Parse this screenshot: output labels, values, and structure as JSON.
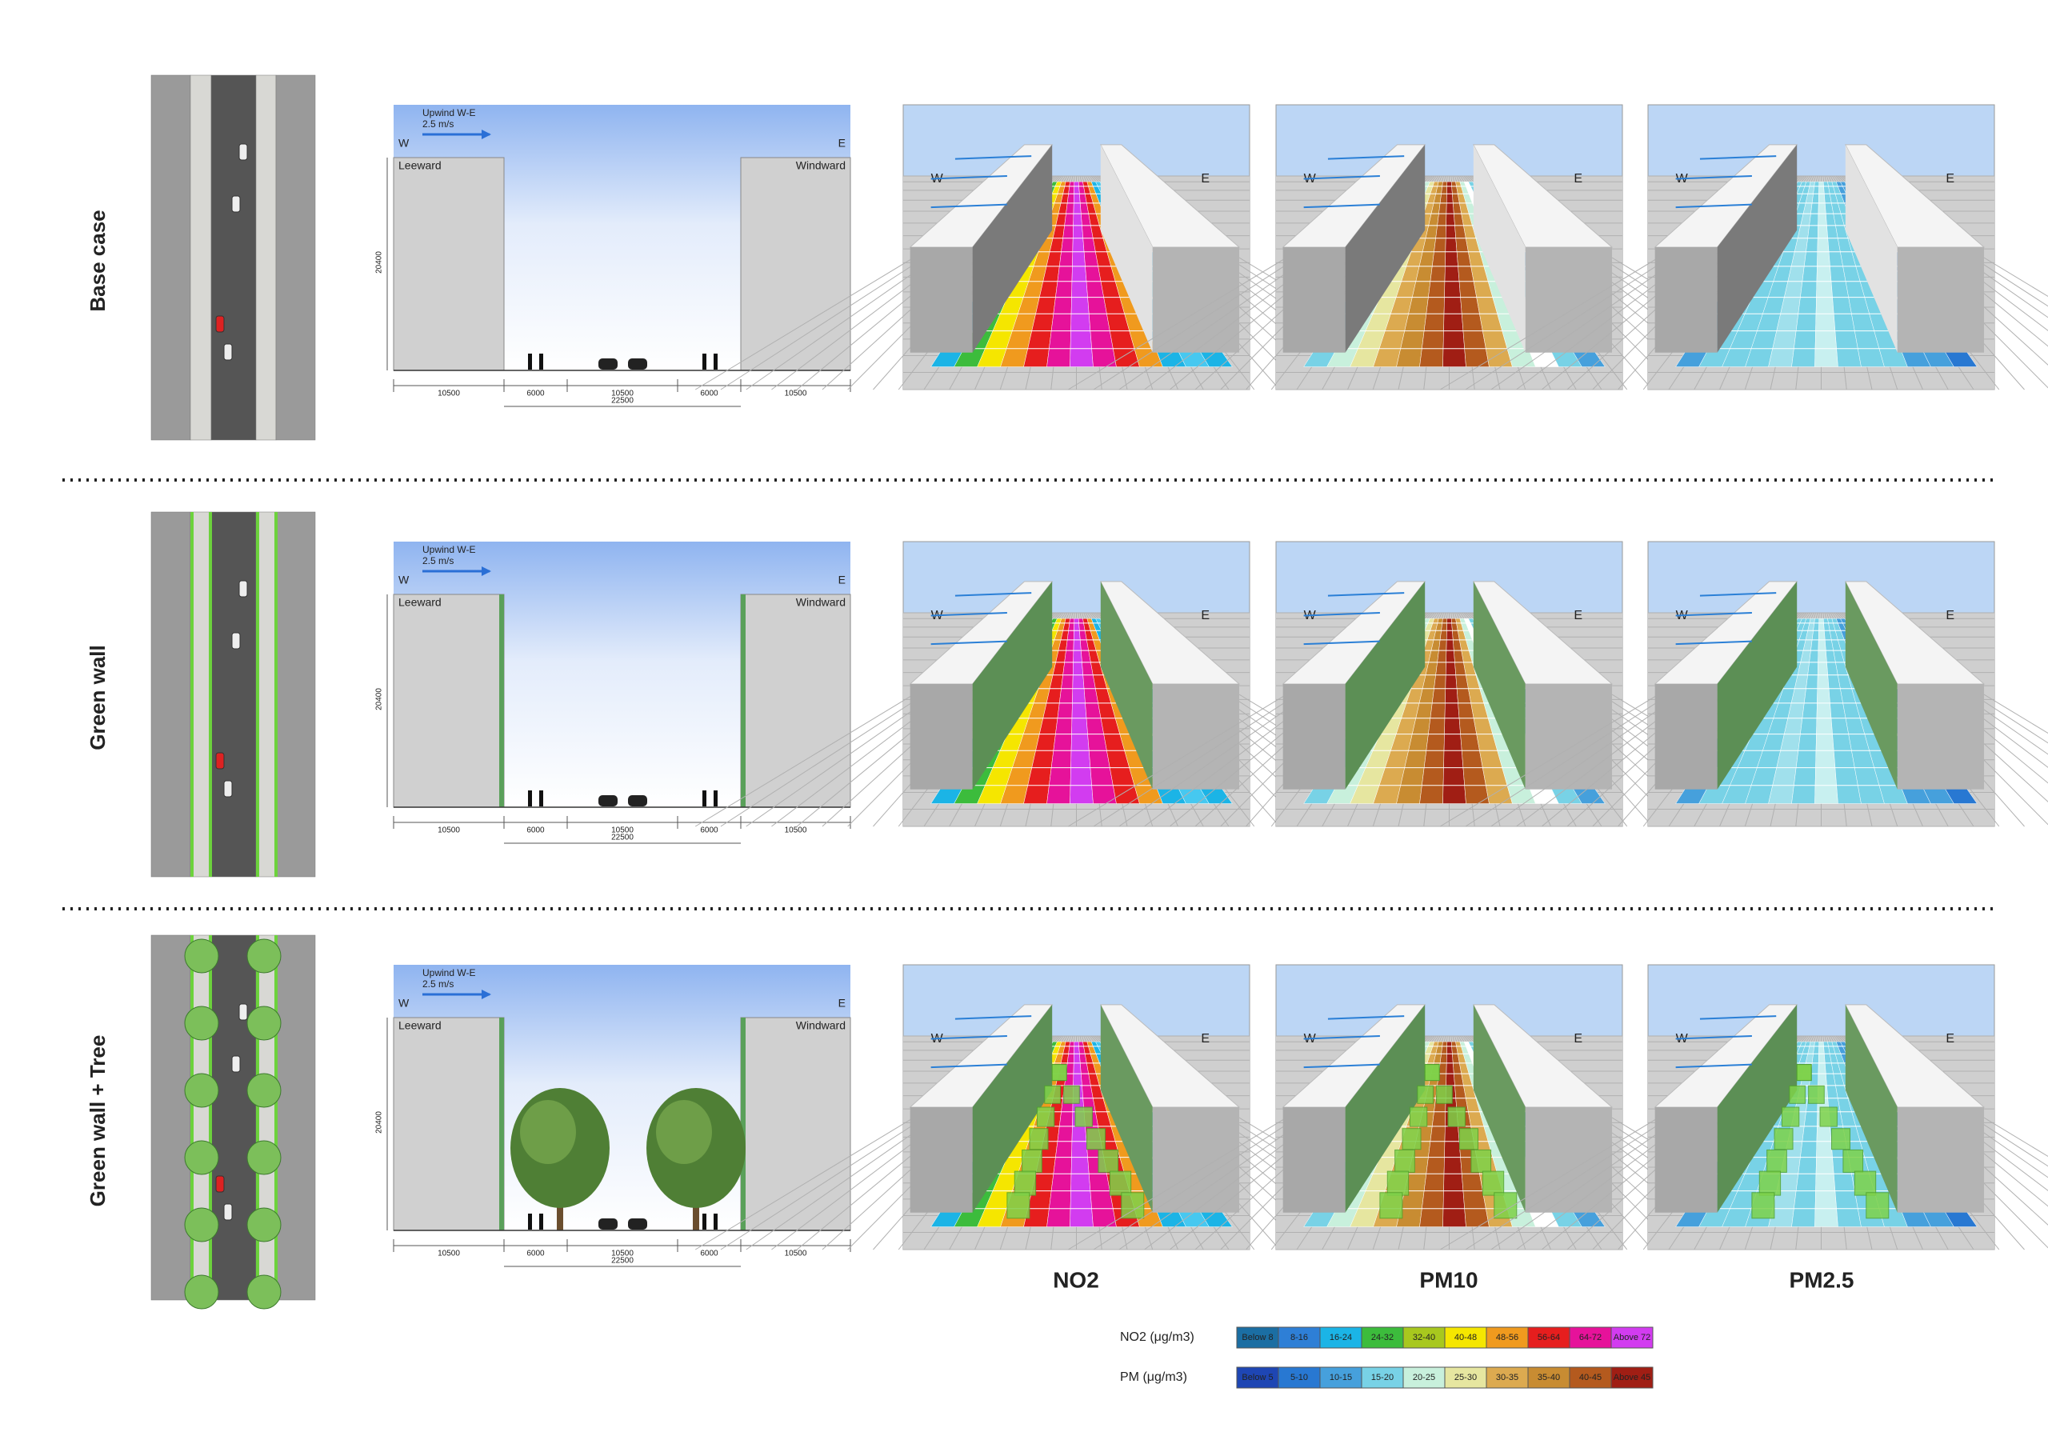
{
  "rows": [
    {
      "label": "Base case",
      "section": {
        "wind": "Upwind W-E",
        "speed": "2.5 m/s",
        "west": "W",
        "east": "E",
        "leeward": "Leeward",
        "windward": "Windward",
        "height": "20400",
        "widths": [
          "10500",
          "6000",
          "10500",
          "6000",
          "10500"
        ],
        "total": "22500"
      },
      "renders": [
        {
          "west": "W",
          "east": "E"
        },
        {
          "west": "W",
          "east": "E"
        },
        {
          "west": "W",
          "east": "E"
        }
      ]
    },
    {
      "label": "Green wall",
      "section": {
        "wind": "Upwind W-E",
        "speed": "2.5 m/s",
        "west": "W",
        "east": "E",
        "leeward": "Leeward",
        "windward": "Windward",
        "height": "20400",
        "widths": [
          "10500",
          "6000",
          "10500",
          "6000",
          "10500"
        ],
        "total": "22500"
      },
      "renders": [
        {
          "west": "W",
          "east": "E"
        },
        {
          "west": "W",
          "east": "E"
        },
        {
          "west": "W",
          "east": "E"
        }
      ]
    },
    {
      "label": "Green wall + Tree",
      "section": {
        "wind": "Upwind W-E",
        "speed": "2.5 m/s",
        "west": "W",
        "east": "E",
        "leeward": "Leeward",
        "windward": "Windward",
        "height": "20400",
        "widths": [
          "10500",
          "6000",
          "10500",
          "6000",
          "10500"
        ],
        "total": "22500"
      },
      "renders": [
        {
          "west": "W",
          "east": "E"
        },
        {
          "west": "W",
          "east": "E"
        },
        {
          "west": "W",
          "east": "E"
        }
      ]
    }
  ],
  "columns": [
    "NO2",
    "PM10",
    "PM2.5"
  ],
  "legend": [
    {
      "label": "NO2 (μg/m3)",
      "items": [
        {
          "label": "Below 8",
          "color": "#1b6ea3"
        },
        {
          "label": "8-16",
          "color": "#2e7fd6"
        },
        {
          "label": "16-24",
          "color": "#1bb4e6"
        },
        {
          "label": "24-32",
          "color": "#3cbc3c"
        },
        {
          "label": "32-40",
          "color": "#a8c81e"
        },
        {
          "label": "40-48",
          "color": "#f5e600"
        },
        {
          "label": "48-56",
          "color": "#f09a1e"
        },
        {
          "label": "56-64",
          "color": "#e61e1e"
        },
        {
          "label": "64-72",
          "color": "#e6129a"
        },
        {
          "label": "Above 72",
          "color": "#d23cf0"
        }
      ]
    },
    {
      "label": "PM (μg/m3)",
      "items": [
        {
          "label": "Below 5",
          "color": "#1e46b4"
        },
        {
          "label": "5-10",
          "color": "#2878d2"
        },
        {
          "label": "10-15",
          "color": "#46a0dc"
        },
        {
          "label": "15-20",
          "color": "#78d2e6"
        },
        {
          "label": "20-25",
          "color": "#c8f0dc"
        },
        {
          "label": "25-30",
          "color": "#e6e6a0"
        },
        {
          "label": "30-35",
          "color": "#dcaa50"
        },
        {
          "label": "35-40",
          "color": "#c88c32"
        },
        {
          "label": "40-45",
          "color": "#b45a1e"
        },
        {
          "label": "Above 45",
          "color": "#a01e14"
        }
      ]
    }
  ]
}
